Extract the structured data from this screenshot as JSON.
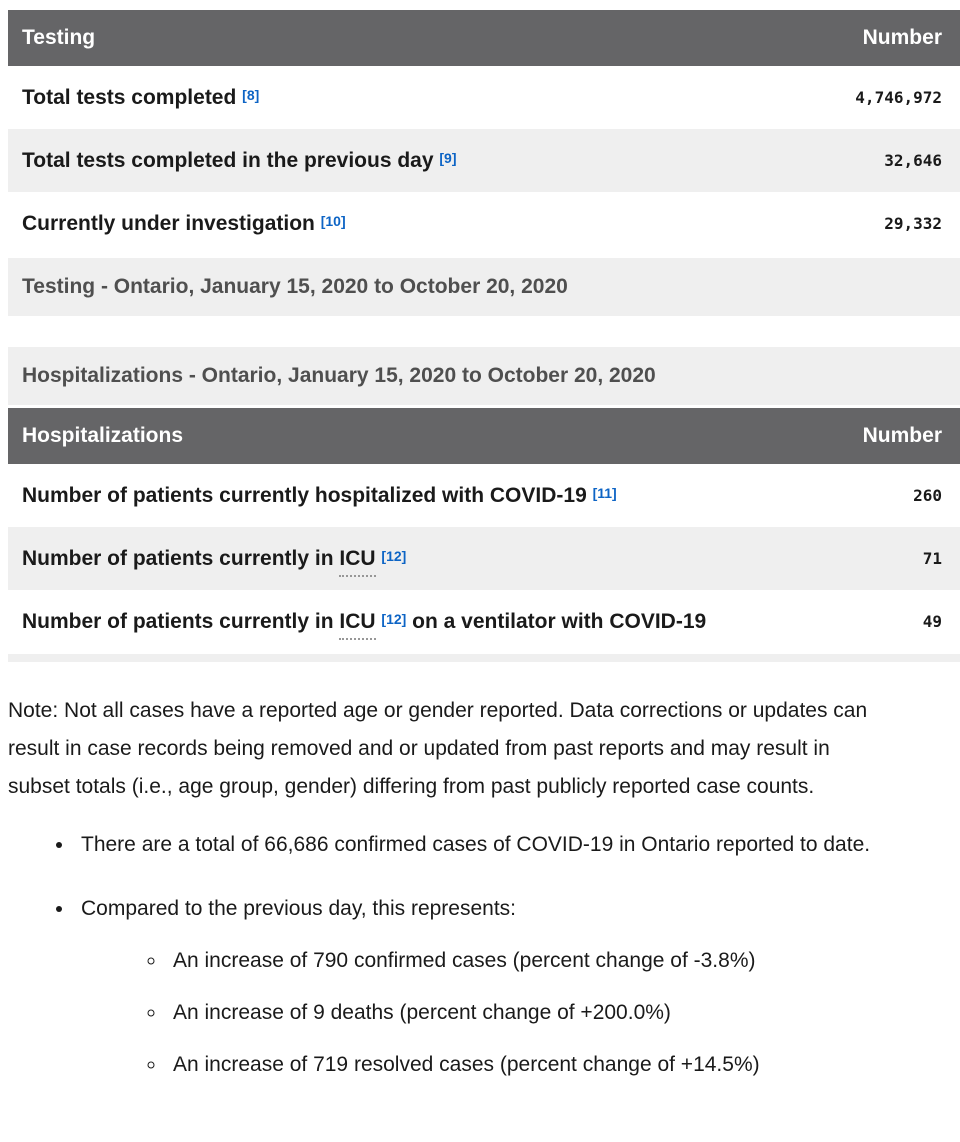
{
  "colors": {
    "table_header_bg": "#656567",
    "row_alt_bg": "#efefef",
    "link_blue": "#0d64c5",
    "text": "#1a1a1a",
    "caption_text": "#4f4f4f"
  },
  "testing_table": {
    "header": {
      "title": "Testing",
      "number_label": "Number"
    },
    "rows": [
      {
        "pre": "Total tests completed",
        "ref": "[8]",
        "value": "4,746,972"
      },
      {
        "pre": "Total tests completed in the previous day",
        "ref": "[9]",
        "value": "32,646"
      },
      {
        "pre": "Currently under investigation",
        "ref": "[10]",
        "value": "29,332"
      }
    ],
    "caption": "Testing - Ontario, January 15, 2020 to October 20, 2020"
  },
  "hospitalizations_table": {
    "caption": "Hospitalizations - Ontario, January 15, 2020 to October 20, 2020",
    "header": {
      "title": "Hospitalizations",
      "number_label": "Number"
    },
    "rows": [
      {
        "pre": "Number of patients currently hospitalized with COVID-19",
        "ref": "[11]",
        "value": "260"
      },
      {
        "pre": "Number of patients currently in",
        "abbr": "ICU",
        "ref": "[12]",
        "value": "71"
      },
      {
        "pre": "Number of patients currently in",
        "abbr": "ICU",
        "ref": "[12]",
        "post": "on a ventilator with COVID-19",
        "value": "49"
      }
    ]
  },
  "note": "Note: Not all cases have a reported age or gender reported. Data corrections or updates can result in case records being removed and or updated from past reports and may result in subset totals (i.e., age group, gender) differing from past publicly reported case counts.",
  "bullets": [
    {
      "text": "There are a total of 66,686 confirmed cases of COVID-19 in Ontario reported to date."
    },
    {
      "text": "Compared to the previous day, this represents:",
      "sub": [
        "An increase of 790 confirmed cases (percent change of -3.8%)",
        "An increase of 9 deaths (percent change of +200.0%)",
        "An increase of 719 resolved cases (percent change of +14.5%)"
      ]
    }
  ]
}
